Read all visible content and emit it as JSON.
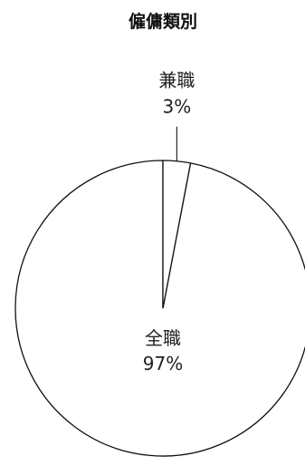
{
  "chart_data": {
    "type": "pie",
    "title": "僱傭類別",
    "slices": [
      {
        "label": "全職",
        "value": 97,
        "value_label": "97%"
      },
      {
        "label": "兼職",
        "value": 3,
        "value_label": "3%"
      }
    ],
    "start_angle_deg": 0,
    "direction": "counterclockwise",
    "fill_color": "#ffffff",
    "stroke_color": "#111111"
  }
}
